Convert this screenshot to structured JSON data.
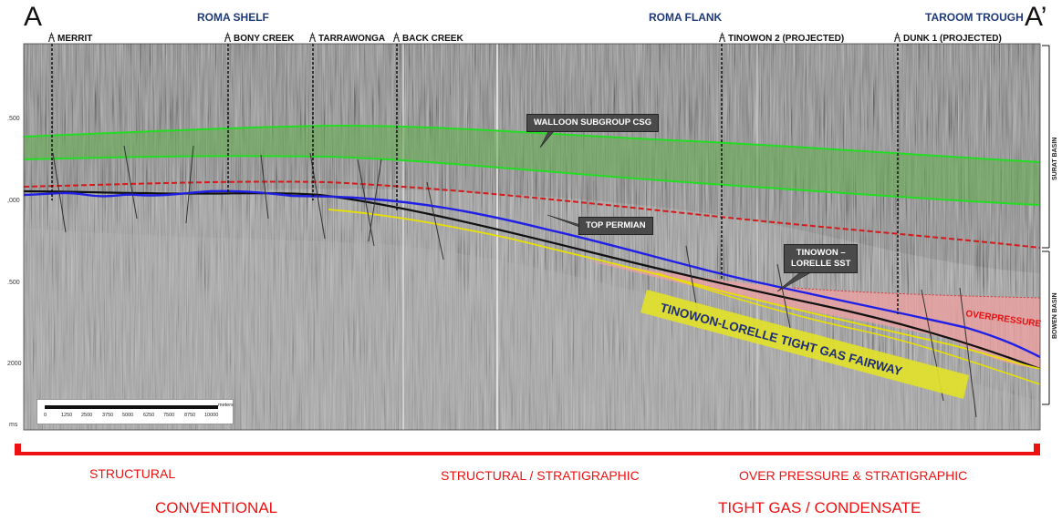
{
  "corners": {
    "left": "A",
    "right": "A’"
  },
  "regions": [
    {
      "id": "roma-shelf",
      "label": "ROMA SHELF"
    },
    {
      "id": "roma-flank",
      "label": "ROMA FLANK"
    },
    {
      "id": "taroom-trough",
      "label": "TAROOM TROUGH"
    }
  ],
  "wells": [
    {
      "id": "merrit",
      "label": "MERRIT"
    },
    {
      "id": "bony-creek",
      "label": "BONY CREEK"
    },
    {
      "id": "tarrawonga",
      "label": "TARRAWONGA"
    },
    {
      "id": "back-creek",
      "label": "BACK CREEK"
    },
    {
      "id": "tinowon-2",
      "label": "TINOWON 2 (PROJECTED)"
    },
    {
      "id": "dunk-1",
      "label": "DUNK 1 (PROJECTED)"
    }
  ],
  "axis": {
    "ticks": [
      ".500",
      ",000",
      ".500",
      "2000"
    ],
    "unit": "ms"
  },
  "callouts": {
    "walloon": "WALLOON SUBGROUP CSG",
    "top_permian": "TOP  PERMIAN",
    "tinowon_line1": "TINOWON –",
    "tinowon_line2": "LORELLE SST"
  },
  "fairway_label": "TINOWON-LORELLE TIGHT GAS FAIRWAY",
  "overpressure_label": "OVERPRESSURE",
  "basins": {
    "surat": "SURAT BASIN",
    "bowen": "BOWEN BASIN"
  },
  "scalebar": {
    "values": [
      "0",
      "1250",
      "2500",
      "3750",
      "5000",
      "6250",
      "7500",
      "8750",
      "10000"
    ],
    "unit": "meters"
  },
  "play_types": {
    "structural": "STRUCTURAL",
    "structural_stratigraphic": "STRUCTURAL / STRATIGRAPHIC",
    "over_pressure": "OVER PRESSURE & STRATIGRAPHIC"
  },
  "resource_types": {
    "conventional": "CONVENTIONAL",
    "tight_gas": "TIGHT GAS / CONDENSATE"
  },
  "colors": {
    "walloon_green": "#22dd22",
    "top_permian_blue": "#1f1fe6",
    "yellow_horizon": "#e8e000",
    "base_jurassic_red": "#d41a1a",
    "overpressure_pink": "#f0a0a0",
    "fairway_yellow": "#e1e12a",
    "label_red": "#ee1111",
    "region_blue": "#1f3a78"
  }
}
